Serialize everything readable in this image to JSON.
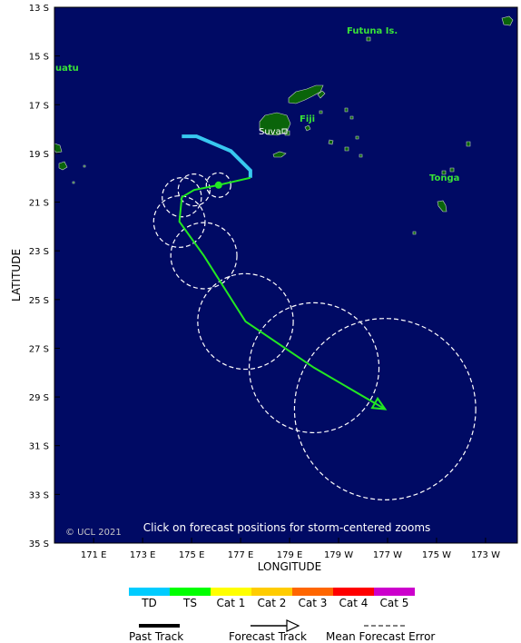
{
  "map": {
    "x_axis_label": "LONGITUDE",
    "y_axis_label": "LATITUDE",
    "latitude_ticks": [
      "13 S",
      "15 S",
      "17 S",
      "19 S",
      "21 S",
      "23 S",
      "25 S",
      "27 S",
      "29 S",
      "31 S",
      "33 S",
      "35 S"
    ],
    "longitude_ticks": [
      "171 E",
      "173 E",
      "175 E",
      "177 E",
      "179 E",
      "179 W",
      "177 W",
      "175 W",
      "173 W"
    ],
    "copyright": "© UCL 2021",
    "hint": "Click on forecast positions for storm-centered zooms",
    "places": [
      {
        "name": "Futuna Is."
      },
      {
        "name": "uatu"
      },
      {
        "name": "Fiji"
      },
      {
        "name": "Suva"
      },
      {
        "name": "Tonga"
      }
    ],
    "colors": {
      "ocean": "#000a64",
      "land": "#0a640a",
      "label": "#38e238",
      "past_track": "#38c8f0",
      "forecast_track": "#22e822",
      "error_circle": "#ffffff"
    },
    "past_track": [
      {
        "lon": 174.6,
        "lat": -18.3
      },
      {
        "lon": 175.2,
        "lat": -18.3
      },
      {
        "lon": 176.6,
        "lat": -18.9
      },
      {
        "lon": 177.4,
        "lat": -19.7
      },
      {
        "lon": 177.4,
        "lat": -20.0
      }
    ],
    "forecast_track": [
      {
        "lon": 177.4,
        "lat": -20.0
      },
      {
        "lon": 176.1,
        "lat": -20.3
      },
      {
        "lon": 175.1,
        "lat": -20.5
      },
      {
        "lon": 174.6,
        "lat": -20.8
      },
      {
        "lon": 174.5,
        "lat": -21.8
      },
      {
        "lon": 175.5,
        "lat": -23.2
      },
      {
        "lon": 177.2,
        "lat": -25.9
      },
      {
        "lon": 180.0,
        "lat": -27.8
      },
      {
        "lon": 182.9,
        "lat": -29.5
      }
    ],
    "error_circles": [
      {
        "lon": 176.1,
        "lat": -20.3,
        "radius_deg": 0.5
      },
      {
        "lon": 175.1,
        "lat": -20.5,
        "radius_deg": 0.65
      },
      {
        "lon": 174.6,
        "lat": -20.8,
        "radius_deg": 0.8
      },
      {
        "lon": 174.5,
        "lat": -21.8,
        "radius_deg": 1.05
      },
      {
        "lon": 175.5,
        "lat": -23.2,
        "radius_deg": 1.35
      },
      {
        "lon": 177.2,
        "lat": -25.9,
        "radius_deg": 1.95
      },
      {
        "lon": 180.0,
        "lat": -27.8,
        "radius_deg": 2.65
      },
      {
        "lon": 182.9,
        "lat": -29.5,
        "radius_deg": 3.7
      }
    ],
    "current_position": {
      "lon": 176.1,
      "lat": -20.3
    }
  },
  "legend": {
    "scale": [
      {
        "label": "TD",
        "color": "#00ccff"
      },
      {
        "label": "TS",
        "color": "#00ff00"
      },
      {
        "label": "Cat 1",
        "color": "#ffff00"
      },
      {
        "label": "Cat 2",
        "color": "#ffcc00"
      },
      {
        "label": "Cat 3",
        "color": "#ff6600"
      },
      {
        "label": "Cat 4",
        "color": "#ff0000"
      },
      {
        "label": "Cat 5",
        "color": "#cc00cc"
      }
    ],
    "past_track": "Past Track",
    "forecast_track": "Forecast Track",
    "mean_error": "Mean Forecast Error"
  }
}
